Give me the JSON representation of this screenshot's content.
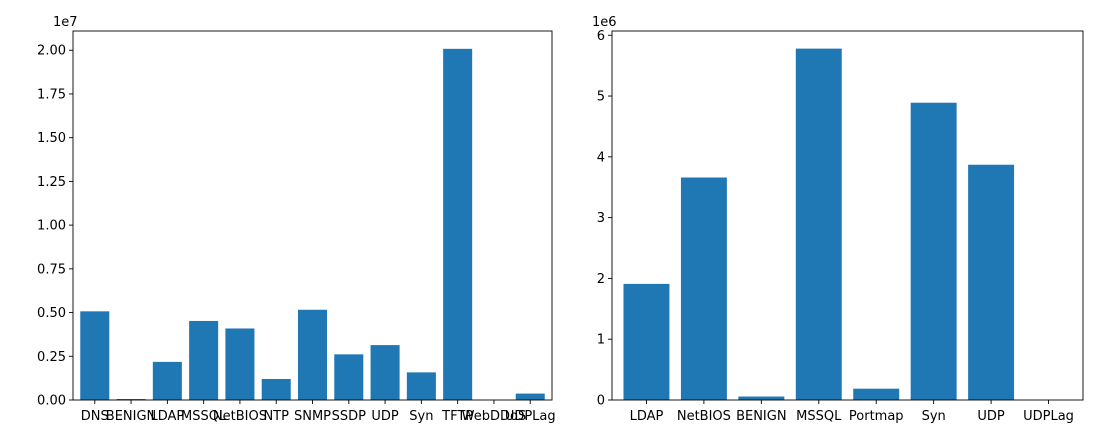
{
  "chart_data": [
    {
      "type": "bar",
      "offset_text": "1e7",
      "multiplier": 10000000,
      "categories": [
        "DNS",
        "BENIGN",
        "LDAP",
        "MSSQL",
        "NetBIOS",
        "NTP",
        "SNMP",
        "SSDP",
        "UDP",
        "Syn",
        "TFTP",
        "WebDDoS",
        "UDPLag"
      ],
      "values": [
        5070000,
        56000,
        2180000,
        4520000,
        4090000,
        1200000,
        5160000,
        2610000,
        3140000,
        1580000,
        20080000,
        400,
        366000
      ],
      "yticks": [
        "0.00",
        "0.25",
        "0.50",
        "0.75",
        "1.00",
        "1.25",
        "1.50",
        "1.75",
        "2.00"
      ],
      "ytick_values": [
        0,
        0.25,
        0.5,
        0.75,
        1.0,
        1.25,
        1.5,
        1.75,
        2.0
      ],
      "ylim": [
        0,
        21100000
      ],
      "bar_color": "#1f77b4"
    },
    {
      "type": "bar",
      "offset_text": "1e6",
      "multiplier": 1000000,
      "categories": [
        "LDAP",
        "NetBIOS",
        "BENIGN",
        "MSSQL",
        "Portmap",
        "Syn",
        "UDP",
        "UDPLag"
      ],
      "values": [
        1910000,
        3660000,
        57000,
        5780000,
        186000,
        4890000,
        3870000,
        1000
      ],
      "yticks": [
        "0",
        "1",
        "2",
        "3",
        "4",
        "5",
        "6"
      ],
      "ytick_values": [
        0,
        1,
        2,
        3,
        4,
        5,
        6
      ],
      "ylim": [
        0,
        6070000
      ],
      "bar_color": "#1f77b4"
    }
  ]
}
